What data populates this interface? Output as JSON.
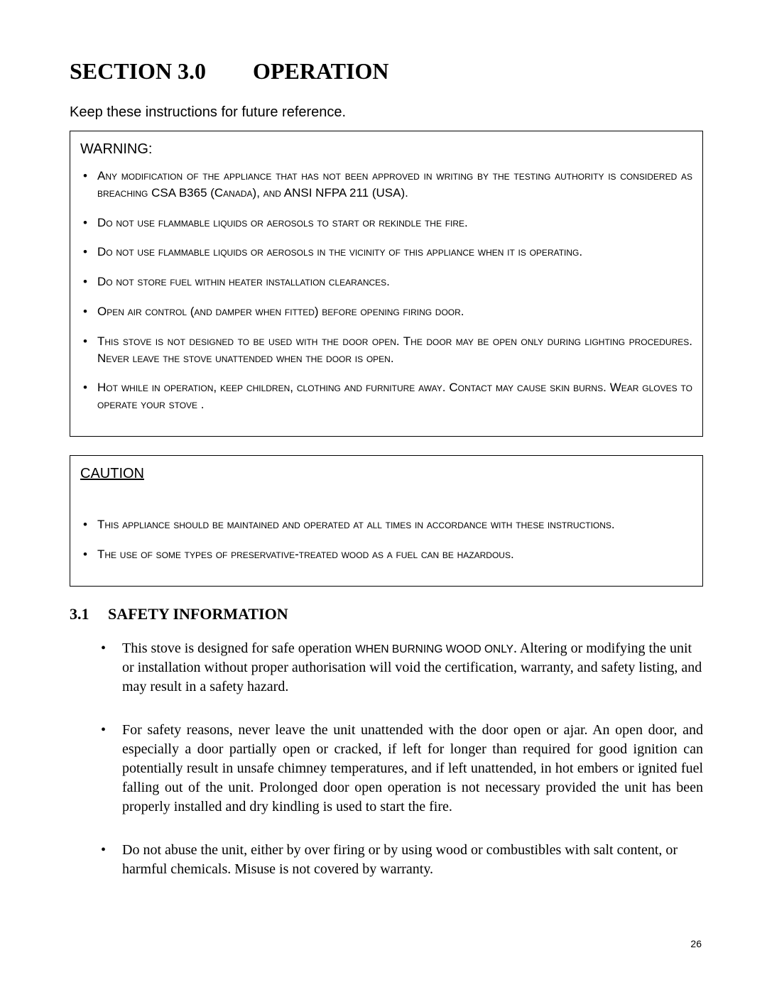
{
  "heading": {
    "section_label": "SECTION 3.0",
    "title": "OPERATION"
  },
  "intro": "Keep these instructions for future reference.",
  "warning": {
    "label": "WARNING:",
    "items": [
      {
        "pre": "Any modification of the appliance that has not been approved in writing by the testing authority is considered as breaching ",
        "norm1": "CSA B365 (",
        "mid1": "Canada",
        "norm2": "), ",
        "mid2": "and",
        "norm3": " ANSI NFPA 211 (USA)."
      },
      "Do not use flammable liquids or aerosols to start or rekindle the fire.",
      "Do not use flammable liquids or aerosols in the vicinity of this appliance when it is operating.",
      "Do not store fuel within heater installation clearances.",
      "Open air control (and damper when fitted) before opening firing door.",
      "This stove is not designed to be used with the door open.  The door may be open only during lighting procedures.   Never leave the stove unattended when the door is open.",
      "Hot while in operation, keep children, clothing and furniture away.  Contact may cause skin burns.  Wear gloves to operate your stove ."
    ]
  },
  "caution": {
    "label": "CAUTION",
    "items": [
      "This appliance should be maintained and operated at all times in accordance with these instructions.",
      "The use of some types of preservative-treated wood as a fuel can be hazardous."
    ]
  },
  "sub": {
    "num": "3.1",
    "title": "SAFETY INFORMATION"
  },
  "safety": {
    "items": [
      {
        "pre": "This stove is designed for safe operation ",
        "sc": "WHEN BURNING  WOOD ONLY",
        "post": ".  Altering or modifying the unit or installation without proper authorisation will void the certification, warranty, and safety listing, and may result in a safety hazard."
      },
      "For safety reasons, never leave the unit unattended with the door open or ajar.  An open door, and especially a door partially open or cracked, if left for longer than required for good ignition can potentially result in unsafe chimney temperatures, and if left unattended, in hot embers or ignited fuel falling out of the unit.  Prolonged door open operation is not necessary provided the unit has been properly installed and dry kindling is used to start the fire.",
      "Do not abuse the unit, either by over firing or by using wood or combustibles with salt content, or harmful chemicals.  Misuse is not covered by warranty."
    ]
  },
  "page_number": "26"
}
